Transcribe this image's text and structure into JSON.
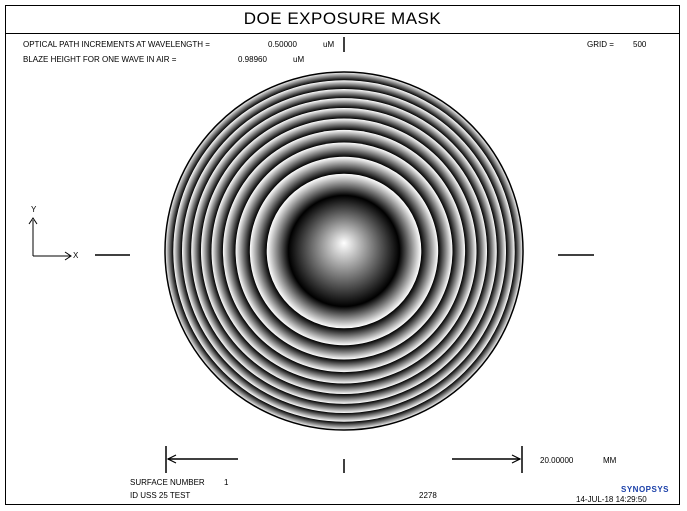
{
  "title": "DOE EXPOSURE MASK",
  "header": {
    "opd_label": "OPTICAL PATH INCREMENTS AT WAVELENGTH =",
    "opd_value": "0.50000",
    "opd_unit": "uM",
    "blaze_label": "BLAZE HEIGHT FOR ONE WAVE IN AIR =",
    "blaze_value": "0.98960",
    "blaze_unit": "uM",
    "grid_label": "GRID =",
    "grid_value": "500"
  },
  "axes": {
    "y_label": "Y",
    "x_label": "X"
  },
  "scale": {
    "value": "20.00000",
    "unit": "MM"
  },
  "footer": {
    "surface_label": "SURFACE NUMBER",
    "surface_value": "1",
    "id_text": "ID USS 25 TEST",
    "count": "2278",
    "logo": "SYNOPSYS",
    "datetime": "14-JUL-18  14:29:50"
  },
  "mask": {
    "center_zone_fraction": 0.31,
    "ring_count": 10,
    "colors": {
      "dark": "#000000",
      "light": "#ffffff",
      "line": "#000000"
    }
  }
}
